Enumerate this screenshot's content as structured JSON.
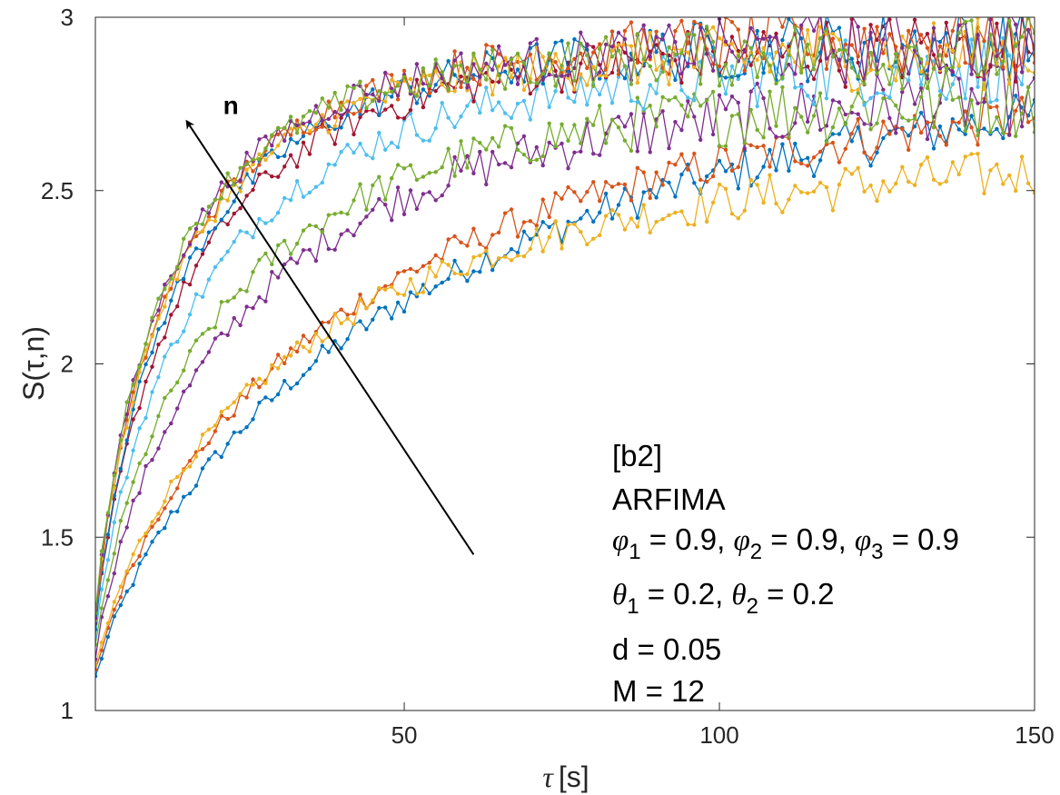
{
  "chart_data": {
    "type": "line",
    "title": "",
    "xlabel": "[s]",
    "xlabel_symbol": "τ",
    "ylabel": "S(τ,n)",
    "xlim": [
      1,
      150
    ],
    "ylim": [
      1,
      3
    ],
    "xticks": [
      50,
      100,
      150
    ],
    "yticks": [
      1,
      1.5,
      2,
      2.5,
      3
    ],
    "grid": false,
    "markers": "dot",
    "series_count": 12,
    "series_colors": [
      "#0072BD",
      "#D95319",
      "#EDB120",
      "#7E2F8E",
      "#77AC30",
      "#4DBEEE",
      "#A2142F",
      "#0072BD",
      "#D95319",
      "#EDB120",
      "#7E2F8E",
      "#77AC30"
    ],
    "series_asymptote": [
      2.95,
      2.85,
      2.62,
      2.8,
      2.78,
      2.87,
      2.92,
      2.93,
      2.94,
      2.9,
      2.92,
      2.9
    ],
    "series_tau_scale": [
      55,
      42,
      32,
      24,
      20,
      17,
      15,
      14,
      13,
      12.5,
      12,
      11.5
    ],
    "arrow": {
      "label": "n",
      "from": [
        61,
        1.45
      ],
      "to": [
        15.5,
        2.7
      ]
    },
    "annotation": {
      "title": "[b2]",
      "model": "ARFIMA",
      "phi": [
        "0.9",
        "0.9",
        "0.9"
      ],
      "theta": [
        "0.2",
        "0.2"
      ],
      "d_line": "d = 0.05",
      "m_line": "M = 12"
    }
  }
}
